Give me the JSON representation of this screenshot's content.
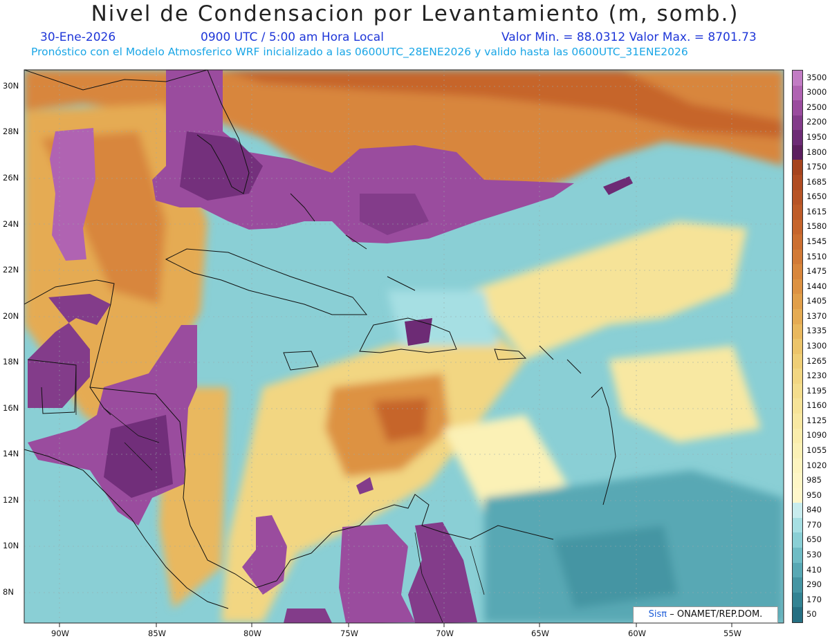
{
  "header": {
    "title": "Nivel de Condensacion por Levantamiento (m, somb.)",
    "date": "30-Ene-2026",
    "time": "0900 UTC / 5:00 am Hora Local",
    "min_max": "Valor Min. = 88.0312  Valor Max. = 8701.73",
    "model_info": "Pronóstico con el Modelo Atmosferico WRF inicializado a las 0600UTC_28ENE2026 y valido hasta las  0600UTC_31ENE2026"
  },
  "axes": {
    "lon_labels": [
      "90W",
      "85W",
      "80W",
      "75W",
      "70W",
      "65W",
      "60W",
      "55W"
    ],
    "lat_labels": [
      "30N",
      "28N",
      "26N",
      "24N",
      "22N",
      "20N",
      "18N",
      "16N",
      "14N",
      "12N",
      "10N",
      "8N"
    ]
  },
  "colorbar": {
    "labels": [
      "3500",
      "3000",
      "2500",
      "2200",
      "1950",
      "1800",
      "1750",
      "1685",
      "1650",
      "1615",
      "1580",
      "1545",
      "1510",
      "1475",
      "1440",
      "1405",
      "1370",
      "1335",
      "1300",
      "1265",
      "1230",
      "1195",
      "1160",
      "1125",
      "1090",
      "1055",
      "1020",
      "985",
      "950",
      "840",
      "770",
      "650",
      "530",
      "410",
      "290",
      "170",
      "50"
    ],
    "colors": [
      "#c27cc4",
      "#b063b2",
      "#9a4c9e",
      "#833c8a",
      "#6d2b75",
      "#5c1f5e",
      "#a6441e",
      "#b04c22",
      "#b75426",
      "#be5c29",
      "#c6652c",
      "#cc6f31",
      "#d27a36",
      "#d8863c",
      "#dd9242",
      "#e19f4a",
      "#e5ab53",
      "#e9b85e",
      "#ecc46a",
      "#efce76",
      "#f2d682",
      "#f4dd8d",
      "#f6e398",
      "#f8e8a2",
      "#faedac",
      "#fbf1b6",
      "#fdf4bf",
      "#fef6c6",
      "#fff7cb",
      "#c8ecee",
      "#a6dfe3",
      "#8acfd5",
      "#6fbcc5",
      "#58a8b4",
      "#4595a3",
      "#338393",
      "#256f82"
    ]
  },
  "credit": {
    "brand": "Sisπ",
    "text": "– ONAMET/REP.DOM."
  },
  "colors": {
    "high_lcl": "#9a4c9e",
    "mid_lcl": "#d8863c",
    "low_lcl": "#8acfd5"
  }
}
